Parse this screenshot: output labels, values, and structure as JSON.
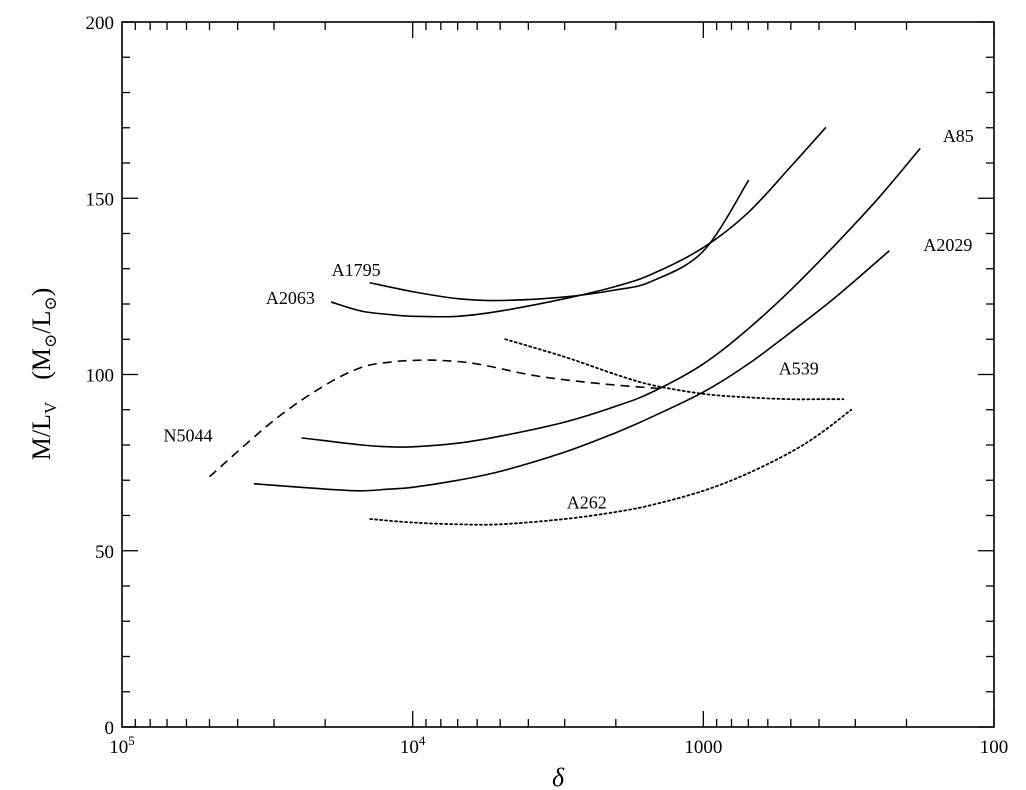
{
  "chart_data": {
    "type": "line",
    "title": "",
    "xlabel": "δ",
    "ylabel": {
      "prefix": "M/L",
      "prefix_sub": "V",
      "unit_open": "(M",
      "unit_sun1": "⊙",
      "unit_mid": "/L",
      "unit_sun2": "⊙",
      "unit_close": ")"
    },
    "x_scale": "log",
    "x_reversed": true,
    "xlim": [
      100000,
      100
    ],
    "ylim": [
      0,
      200
    ],
    "x_ticks": [
      {
        "value": 100000,
        "label": "10",
        "sup": "5"
      },
      {
        "value": 10000,
        "label": "10",
        "sup": "4"
      },
      {
        "value": 1000,
        "label": "1000",
        "sup": ""
      },
      {
        "value": 100,
        "label": "100",
        "sup": ""
      }
    ],
    "y_ticks": [
      {
        "value": 0,
        "label": "0"
      },
      {
        "value": 50,
        "label": "50"
      },
      {
        "value": 100,
        "label": "100"
      },
      {
        "value": 150,
        "label": "150"
      },
      {
        "value": 200,
        "label": "200"
      }
    ],
    "grid": false,
    "legend": "none",
    "series": [
      {
        "name": "A1795",
        "style": "solid",
        "x": [
          14000,
          10000,
          7000,
          5000,
          3000,
          2000,
          1500,
          1000,
          700
        ],
        "y": [
          126,
          123.5,
          121.5,
          121,
          122,
          124,
          126.5,
          135,
          155
        ]
      },
      {
        "name": "A2063",
        "style": "solid",
        "x": [
          19000,
          15000,
          12000,
          10000,
          7000,
          5000,
          3000,
          2000,
          1500,
          1000,
          700,
          500,
          380
        ],
        "y": [
          120.5,
          118,
          117,
          116.5,
          116.5,
          118,
          121.5,
          125,
          128.5,
          136,
          146,
          159,
          170
        ]
      },
      {
        "name": "A85",
        "style": "solid",
        "x": [
          24000,
          15000,
          12000,
          10000,
          7000,
          5000,
          3000,
          2000,
          1500,
          1000,
          700,
          500,
          350,
          250,
          180
        ],
        "y": [
          82,
          80,
          79.5,
          79.5,
          80.5,
          82.5,
          86.5,
          91,
          95,
          103,
          113,
          124,
          137,
          150,
          164
        ]
      },
      {
        "name": "A2029",
        "style": "solid",
        "x": [
          35000,
          20000,
          15000,
          12000,
          10000,
          7000,
          5000,
          3000,
          2000,
          1500,
          1000,
          700,
          500,
          350,
          230
        ],
        "y": [
          69,
          67.5,
          67,
          67.5,
          68,
          70,
          72.5,
          78,
          83.5,
          88,
          95,
          103,
          112,
          122,
          135
        ]
      },
      {
        "name": "A539",
        "style": "dotted",
        "x": [
          4800,
          3000,
          2000,
          1500,
          1000,
          700,
          500,
          400,
          330
        ],
        "y": [
          110,
          105,
          100,
          97,
          94.5,
          93.5,
          93,
          93,
          93
        ]
      },
      {
        "name": "A262",
        "style": "dotted",
        "x": [
          14000,
          10000,
          7000,
          5000,
          3000,
          2000,
          1500,
          1000,
          700,
          500,
          400,
          310
        ],
        "y": [
          59,
          58,
          57.5,
          57.5,
          59,
          61,
          63,
          67,
          72,
          78,
          83,
          90
        ]
      },
      {
        "name": "N5044",
        "style": "dashed",
        "x": [
          50000,
          30000,
          20000,
          15000,
          12000,
          10000,
          8000,
          6000,
          4000,
          3000,
          2000,
          1400
        ],
        "y": [
          71,
          87,
          97,
          102,
          103.5,
          104,
          104,
          103,
          100,
          98.5,
          97,
          96
        ]
      }
    ],
    "annotations": [
      {
        "text": "A1795",
        "x": 19000,
        "y": 128
      },
      {
        "text": "A2063",
        "x": 32000,
        "y": 120
      },
      {
        "text": "A85",
        "x": 150,
        "y": 166
      },
      {
        "text": "A2029",
        "x": 175,
        "y": 135
      },
      {
        "text": "A539",
        "x": 550,
        "y": 100
      },
      {
        "text": "A262",
        "x": 2950,
        "y": 62
      },
      {
        "text": "N5044",
        "x": 72000,
        "y": 81
      }
    ]
  }
}
